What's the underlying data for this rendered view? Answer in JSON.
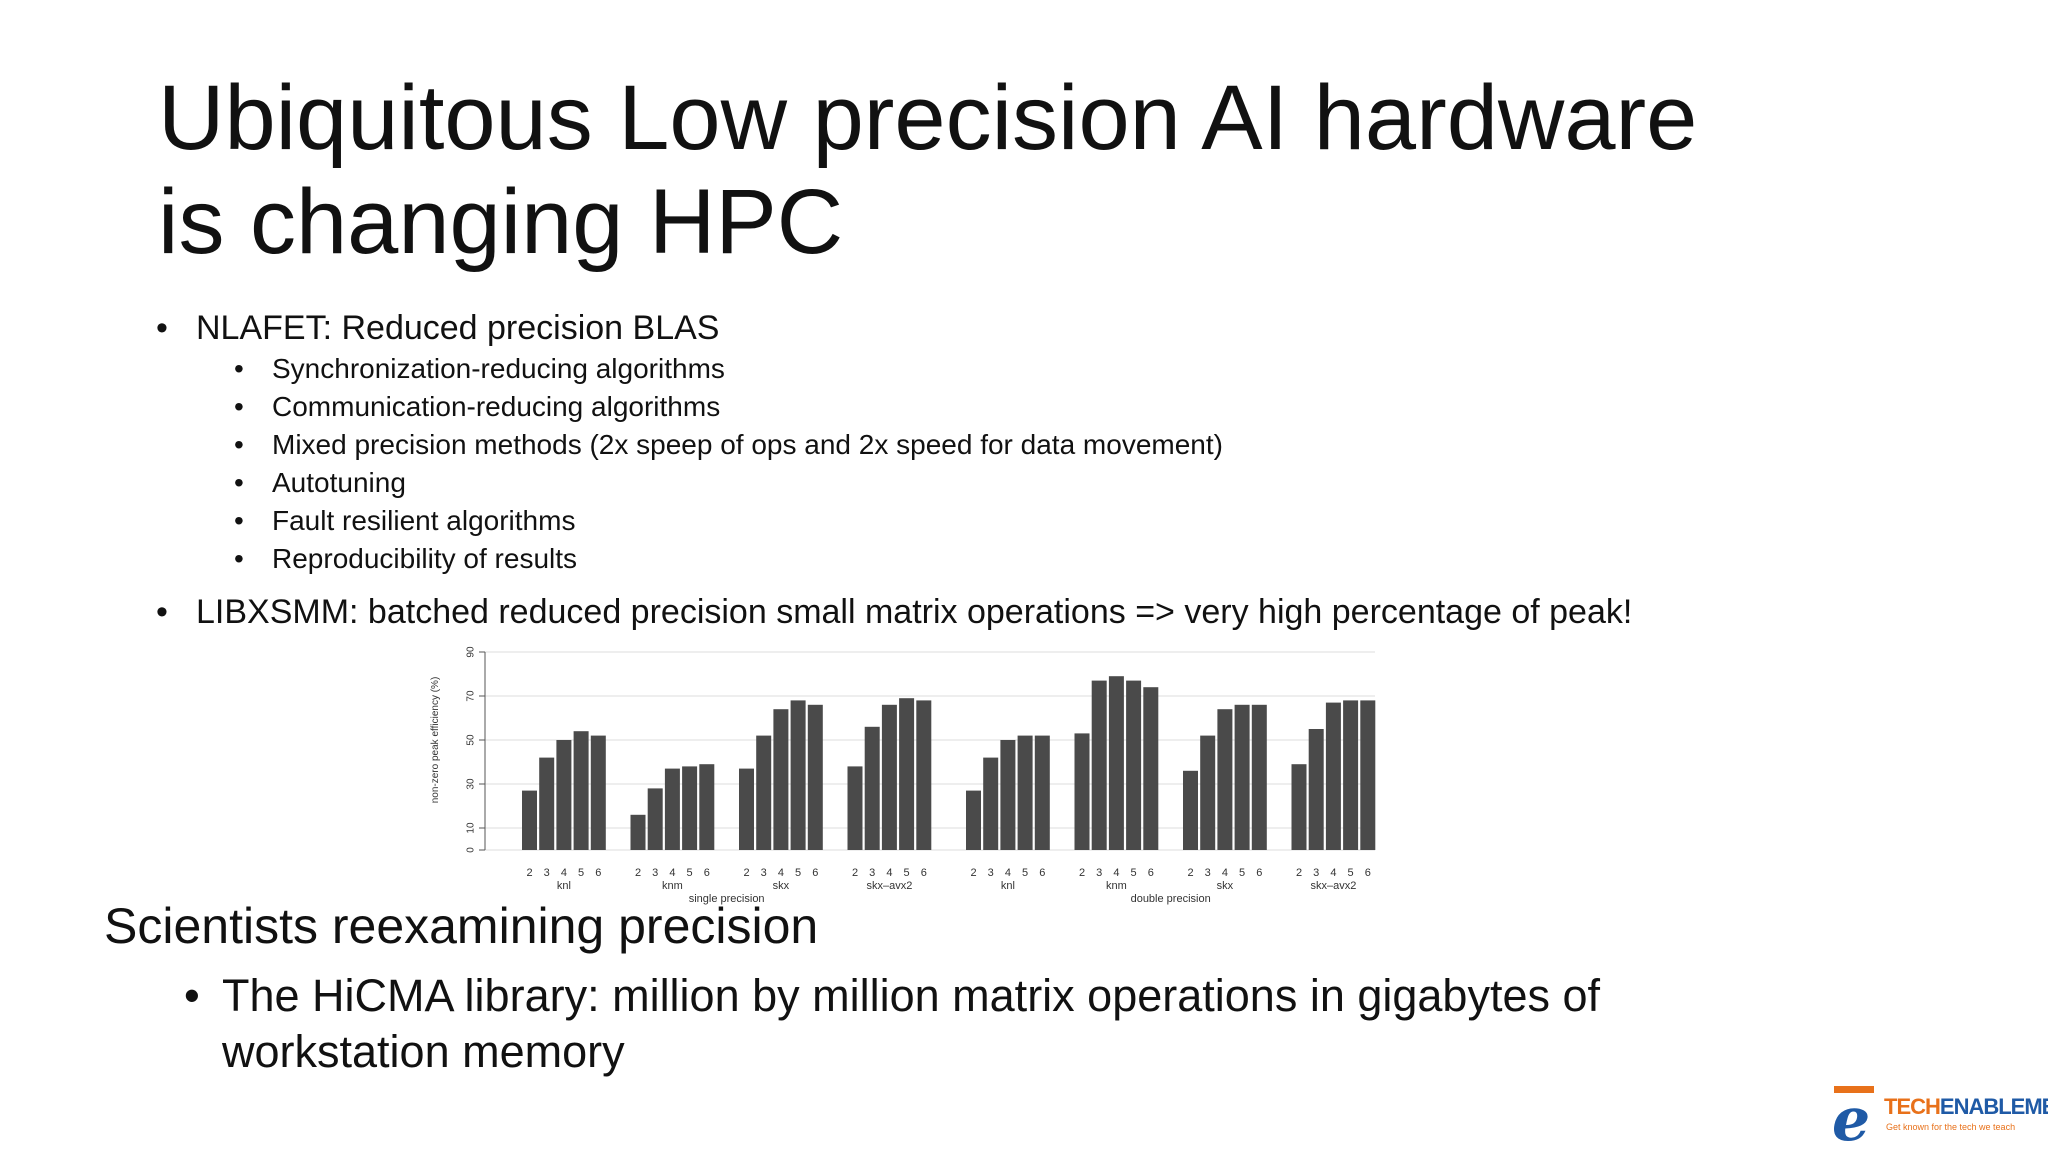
{
  "slide": {
    "title": "Ubiquitous Low precision AI hardware is changing HPC",
    "bullet1": {
      "text": "NLAFET: Reduced precision BLAS",
      "subs": [
        "Synchronization-reducing algorithms",
        "Communication-reducing algorithms",
        "Mixed precision methods (2x speep of ops and 2x speed for data movement)",
        "Autotuning",
        "Fault resilient algorithms",
        "Reproducibility of results"
      ]
    },
    "bullet2": "LIBXSMM: batched reduced precision small matrix operations => very high percentage of peak!",
    "section_heading": "Scientists reexamining precision",
    "bullet3": "The HiCMA library: million by million matrix operations in gigabytes of workstation memory",
    "bullet_char": "•"
  },
  "logo": {
    "letter": "e",
    "brand_a": "TECH",
    "brand_b": "ENABLEMENT",
    "tagline": "Get known for the tech we teach",
    "colors": {
      "orange": "#e8711a",
      "blue": "#1f5aa6"
    }
  },
  "chart_data": {
    "type": "bar",
    "ylabel": "non-zero peak efficiency (%)",
    "ylim": [
      0,
      100
    ],
    "yticks": [
      0,
      10,
      30,
      50,
      70,
      90
    ],
    "bar_color": "#4a4a4a",
    "groups": [
      {
        "precision": "single precision",
        "platforms": [
          {
            "name": "knl",
            "x": [
              "2",
              "3",
              "4",
              "5",
              "6"
            ],
            "values": [
              27,
              42,
              50,
              54,
              52
            ]
          },
          {
            "name": "knm",
            "x": [
              "2",
              "3",
              "4",
              "5",
              "6"
            ],
            "values": [
              16,
              28,
              37,
              38,
              39
            ]
          },
          {
            "name": "skx",
            "x": [
              "2",
              "3",
              "4",
              "5",
              "6"
            ],
            "values": [
              37,
              52,
              64,
              68,
              66
            ]
          },
          {
            "name": "skx–avx2",
            "x": [
              "2",
              "3",
              "4",
              "5",
              "6"
            ],
            "values": [
              38,
              56,
              66,
              69,
              68
            ]
          }
        ]
      },
      {
        "precision": "double precision",
        "platforms": [
          {
            "name": "knl",
            "x": [
              "2",
              "3",
              "4",
              "5",
              "6"
            ],
            "values": [
              27,
              42,
              50,
              52,
              52
            ]
          },
          {
            "name": "knm",
            "x": [
              "2",
              "3",
              "4",
              "5",
              "6"
            ],
            "values": [
              53,
              77,
              79,
              77,
              74
            ]
          },
          {
            "name": "skx",
            "x": [
              "2",
              "3",
              "4",
              "5",
              "6"
            ],
            "values": [
              36,
              52,
              64,
              66,
              66
            ]
          },
          {
            "name": "skx–avx2",
            "x": [
              "2",
              "3",
              "4",
              "5",
              "6"
            ],
            "values": [
              39,
              55,
              67,
              68,
              68
            ]
          }
        ]
      }
    ]
  }
}
